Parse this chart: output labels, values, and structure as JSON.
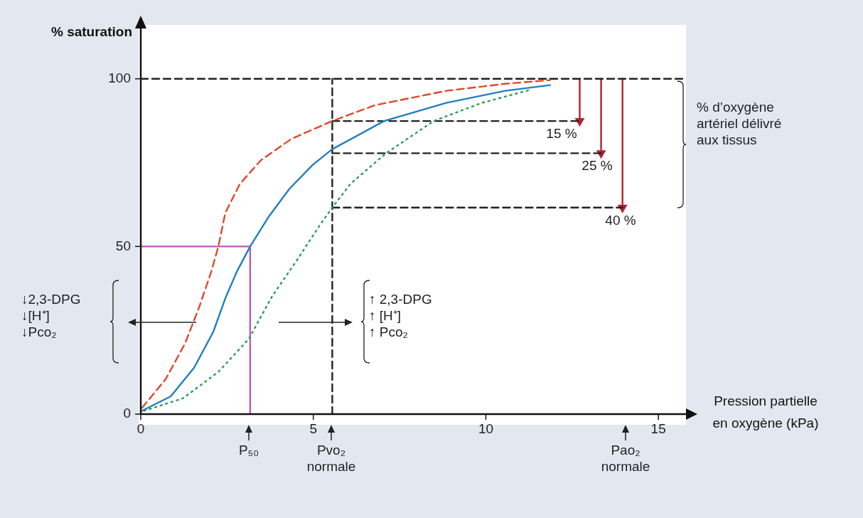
{
  "chart_data": {
    "type": "line",
    "ylabel": "% saturation",
    "xlabel": "Pression partielle\nen oxygène (kPa)",
    "xlim": [
      0,
      15.8
    ],
    "xticks": [
      0,
      5,
      10,
      15
    ],
    "ylim": [
      0,
      115
    ],
    "yticks": [
      0,
      50,
      100
    ],
    "grid": false,
    "legend": false,
    "marker": "none",
    "series": [
      {
        "color": "#1f7fc0",
        "line_style": "solid",
        "x": [
          0.04,
          0.87,
          1.55,
          2.1,
          2.45,
          2.78,
          3.17,
          3.69,
          4.31,
          4.99,
          5.55,
          7.05,
          8.85,
          10.56,
          11.86
        ],
        "values": [
          1,
          5.3,
          13.9,
          24.5,
          34.5,
          42.4,
          50,
          58.6,
          67.2,
          74.4,
          79,
          87.4,
          92.8,
          96.4,
          98.1
        ]
      },
      {
        "color": "#e0482a",
        "line_style": "dashed",
        "x": [
          0.04,
          0.72,
          1.28,
          1.69,
          2.04,
          2.25,
          2.45,
          2.87,
          3.48,
          4.37,
          5.55,
          6.78,
          8.85,
          10.56,
          11.86
        ],
        "values": [
          1.9,
          10.4,
          21,
          31.8,
          42.4,
          50,
          60,
          68.6,
          75.7,
          82.1,
          87.4,
          92.1,
          96.4,
          98.5,
          99.6
        ]
      },
      {
        "color": "#2a9a5a",
        "line_style": "dotted",
        "x": [
          0.1,
          1.22,
          2.25,
          3.13,
          3.81,
          4.52,
          5.2,
          5.55,
          6.08,
          7.11,
          8.49,
          9.88,
          11.32
        ],
        "values": [
          1,
          4.7,
          12.6,
          22.4,
          35.2,
          45.8,
          56.5,
          61.6,
          68.7,
          77.8,
          87.4,
          92.8,
          96.8
        ]
      },
      {
        "color": "#b65ab8",
        "line_style": "solid",
        "x": [
          0,
          3.17,
          3.17
        ],
        "values": [
          50,
          50,
          0
        ]
      },
      {
        "color": "#222222",
        "line_style": "dashed",
        "x": [
          0,
          15.8
        ],
        "values": [
          100,
          100
        ]
      },
      {
        "color": "#222222",
        "line_style": "dashed",
        "x": [
          5.55,
          5.55
        ],
        "values": [
          0,
          100
        ]
      },
      {
        "color": "#222222",
        "line_style": "dashed",
        "x": [
          5.55,
          12.72
        ],
        "values": [
          87.4,
          87.4
        ]
      },
      {
        "color": "#222222",
        "line_style": "dashed",
        "x": [
          5.55,
          13.34
        ],
        "values": [
          77.8,
          77.8
        ]
      },
      {
        "color": "#222222",
        "line_style": "dashed",
        "x": [
          5.55,
          13.96
        ],
        "values": [
          61.6,
          61.6
        ]
      },
      {
        "color": "#b5202e",
        "line_style": "solid",
        "marker": "triangle",
        "x": [
          12.72,
          12.72
        ],
        "values": [
          100,
          87.4
        ]
      },
      {
        "color": "#b5202e",
        "line_style": "solid",
        "marker": "triangle",
        "x": [
          13.34,
          13.34
        ],
        "values": [
          100,
          77.8
        ]
      },
      {
        "color": "#b5202e",
        "line_style": "solid",
        "marker": "triangle",
        "x": [
          13.96,
          13.96
        ],
        "values": [
          100,
          61.6
        ]
      }
    ],
    "annotations": [
      "↓2,3-DPG\n↓[H⁺]\n↓Pco₂",
      "↑ 2,3-DPG\n↑ [H⁺]\n↑ Pco₂",
      "% d’oxygène\nartériel délivré\naux tissus",
      "15 %",
      "25 %",
      "40 %",
      "P₅₀",
      "Pvo₂\nnormale",
      "Pao₂\nnormale"
    ]
  }
}
